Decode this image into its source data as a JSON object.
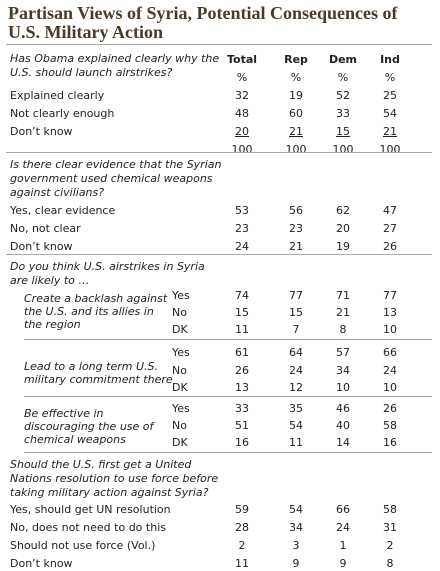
{
  "header": {
    "title": "Partisan Views of Syria, Potential Consequences of U.S. Military Action"
  },
  "columns": [
    {
      "name": "Total",
      "unit": "%"
    },
    {
      "name": "Rep",
      "unit": "%"
    },
    {
      "name": "Dem",
      "unit": "%"
    },
    {
      "name": "Ind",
      "unit": "%"
    }
  ],
  "sections": [
    {
      "question": "Has Obama explained clearly why the U.S. should launch airstrikes?",
      "rows": [
        {
          "label": "Explained clearly",
          "values": [
            32,
            19,
            52,
            25
          ]
        },
        {
          "label": "Not clearly enough",
          "values": [
            48,
            60,
            33,
            54
          ]
        },
        {
          "label": "Don’t know",
          "values": [
            20,
            21,
            15,
            21
          ],
          "underlined": true
        }
      ],
      "total": [
        100,
        100,
        100,
        100
      ]
    },
    {
      "question": "Is there clear evidence that the Syrian government used chemical weapons against civilians?",
      "rows": [
        {
          "label": "Yes, clear evidence",
          "values": [
            53,
            56,
            62,
            47
          ]
        },
        {
          "label": "No, not clear",
          "values": [
            23,
            23,
            20,
            27
          ]
        },
        {
          "label": "Don’t know",
          "values": [
            24,
            21,
            19,
            26
          ]
        }
      ]
    },
    {
      "question": "Do you think U.S. airstrikes in Syria are likely to …",
      "groups": [
        {
          "label": "Create a backlash against the U.S. and its allies in the region",
          "rows": [
            {
              "label": "Yes",
              "values": [
                74,
                77,
                71,
                77
              ]
            },
            {
              "label": "No",
              "values": [
                15,
                15,
                21,
                13
              ]
            },
            {
              "label": "DK",
              "values": [
                11,
                7,
                8,
                10
              ]
            }
          ]
        },
        {
          "label": "Lead to a long term U.S. military commitment there",
          "rows": [
            {
              "label": "Yes",
              "values": [
                61,
                64,
                57,
                66
              ]
            },
            {
              "label": "No",
              "values": [
                26,
                24,
                34,
                24
              ]
            },
            {
              "label": "DK",
              "values": [
                13,
                12,
                10,
                10
              ]
            }
          ]
        },
        {
          "label": "Be effective in discouraging the use of chemical weapons",
          "rows": [
            {
              "label": "Yes",
              "values": [
                33,
                35,
                46,
                26
              ]
            },
            {
              "label": "No",
              "values": [
                51,
                54,
                40,
                58
              ]
            },
            {
              "label": "DK",
              "values": [
                16,
                11,
                14,
                16
              ]
            }
          ]
        }
      ]
    },
    {
      "question": "Should the U.S. first get a United Nations resolution to use force before taking military action against Syria?",
      "rows": [
        {
          "label": "Yes, should get UN resolution",
          "values": [
            59,
            54,
            66,
            58
          ]
        },
        {
          "label": "No, does not need to do this",
          "values": [
            28,
            34,
            24,
            31
          ]
        },
        {
          "label": "Should not use force (Vol.)",
          "values": [
            2,
            3,
            1,
            2
          ]
        },
        {
          "label": "Don’t know",
          "values": [
            11,
            9,
            9,
            8
          ]
        }
      ]
    }
  ]
}
